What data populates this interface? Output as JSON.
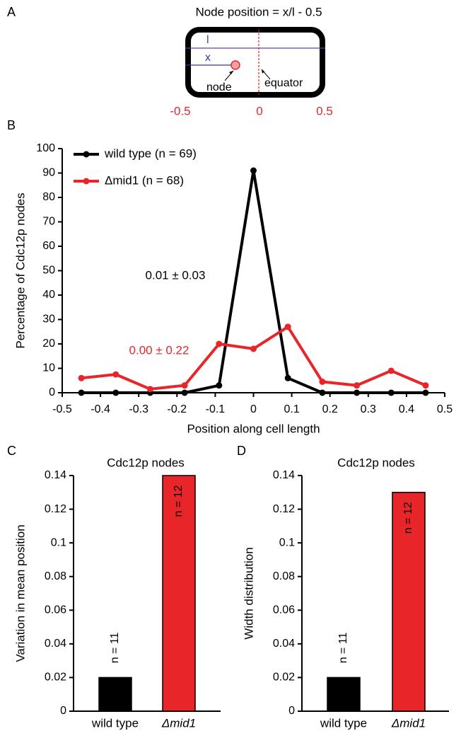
{
  "panel_labels": [
    "A",
    "B",
    "C",
    "D"
  ],
  "diagram": {
    "title": "Node position = x/l - 0.5",
    "length_label": "l",
    "x_label": "x",
    "node_label": "node",
    "equator_label": "equator",
    "scale_labels": [
      "-0.5",
      "0",
      "0.5"
    ]
  },
  "chart_data": [
    {
      "type": "line",
      "x_label": "Position along cell length",
      "y_label": "Percentage of Cdc12p nodes",
      "x": [
        -0.45,
        -0.36,
        -0.27,
        -0.18,
        -0.09,
        0,
        0.09,
        0.18,
        0.27,
        0.36,
        0.45
      ],
      "series": [
        {
          "name": "wild type (n = 69)",
          "color": "#000000",
          "values": [
            0,
            0,
            0,
            0,
            3,
            91,
            6,
            0,
            0,
            0,
            0
          ]
        },
        {
          "name": "Δmid1 (n = 68)",
          "color": "#e8262a",
          "values": [
            6,
            7.5,
            1.5,
            3,
            20,
            18,
            27,
            4.5,
            3,
            9,
            3
          ]
        }
      ],
      "annotations": [
        {
          "text": "0.01 ± 0.03",
          "color": "#000000"
        },
        {
          "text": "0.00 ± 0.22",
          "color": "#e8262a"
        }
      ],
      "xlim": [
        -0.5,
        0.5
      ],
      "xticks": [
        -0.5,
        -0.4,
        -0.3,
        -0.2,
        -0.1,
        0,
        0.1,
        0.2,
        0.3,
        0.4,
        0.5
      ],
      "ylim": [
        0,
        100
      ],
      "yticks": [
        0,
        10,
        20,
        30,
        40,
        50,
        60,
        70,
        80,
        90,
        100
      ],
      "legend": "upper left"
    },
    {
      "type": "bar",
      "title": "Cdc12p nodes",
      "y_label": "Variation in mean position",
      "categories": [
        "wild type",
        "Δmid1"
      ],
      "values": [
        0.02,
        0.14
      ],
      "colors": [
        "#000000",
        "#e8262a"
      ],
      "annotations": [
        "n = 11",
        "n = 12"
      ],
      "ylim": [
        0,
        0.14
      ],
      "yticks": [
        0,
        0.02,
        0.04,
        0.06,
        0.08,
        0.1,
        0.12,
        0.14
      ]
    },
    {
      "type": "bar",
      "title": "Cdc12p nodes",
      "y_label": "Width distribution",
      "categories": [
        "wild type",
        "Δmid1"
      ],
      "values": [
        0.02,
        0.13
      ],
      "colors": [
        "#000000",
        "#e8262a"
      ],
      "annotations": [
        "n = 11",
        "n = 12"
      ],
      "ylim": [
        0,
        0.14
      ],
      "yticks": [
        0,
        0.02,
        0.04,
        0.06,
        0.08,
        0.1,
        0.12,
        0.14
      ]
    }
  ]
}
